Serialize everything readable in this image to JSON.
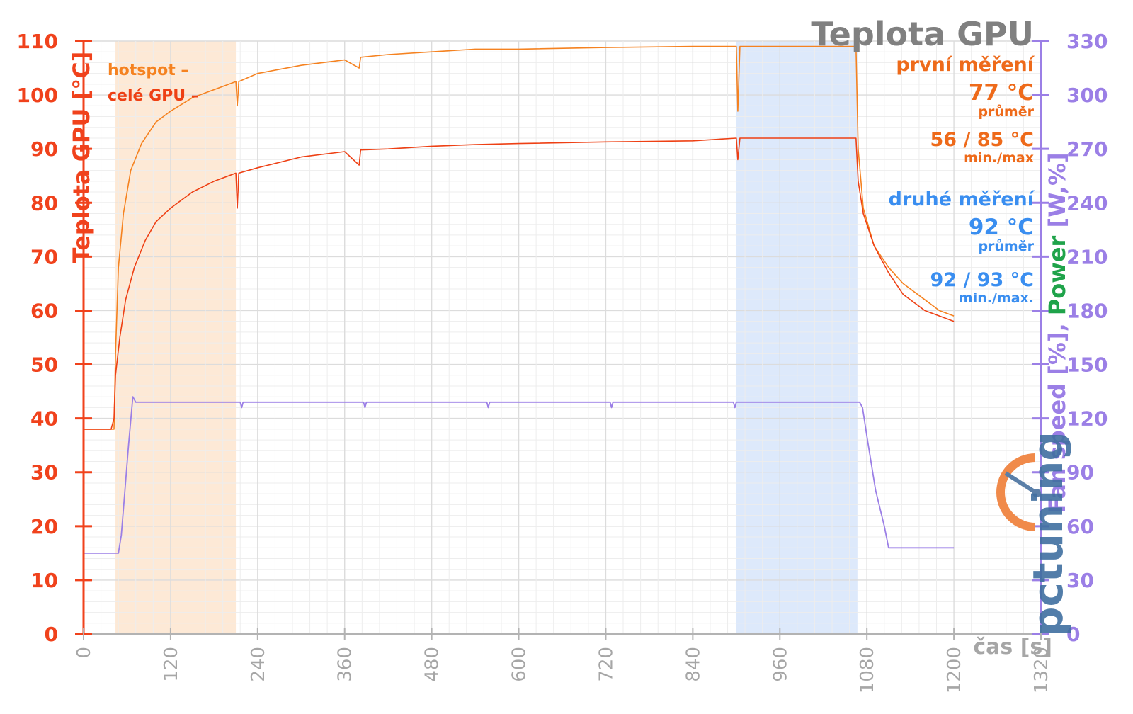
{
  "chart_data": {
    "type": "line",
    "title": "Teplota GPU",
    "xlabel": "čas [s]",
    "ylabel_left": "Teplota GPU [°C]",
    "ylabel_right_parts": [
      {
        "text": "Fan speed [%], ",
        "color": "#9b7fe6"
      },
      {
        "text": "Power",
        "color": "#1fa34a"
      },
      {
        "text": " [W,%]",
        "color": "#9b7fe6"
      }
    ],
    "xlim": [
      0,
      1320
    ],
    "ylim_left": [
      0,
      110
    ],
    "ylim_right": [
      0,
      330
    ],
    "x_ticks": [
      "0",
      "120",
      "240",
      "360",
      "480",
      "600",
      "720",
      "840",
      "960",
      "1080",
      "1200",
      "1320"
    ],
    "y_ticks_left": [
      "0",
      "10",
      "20",
      "30",
      "40",
      "50",
      "60",
      "70",
      "80",
      "90",
      "100",
      "110"
    ],
    "y_ticks_right": [
      "0",
      "30",
      "60",
      "90",
      "120",
      "150",
      "180",
      "210",
      "240",
      "270",
      "300",
      "330"
    ],
    "grid": true,
    "shaded_regions": [
      {
        "x": [
          44,
          210
        ],
        "color": "#fde9d6"
      },
      {
        "x": [
          900,
          1067
        ],
        "color": "#dde9fb"
      }
    ],
    "series": [
      {
        "name": "hotspot",
        "color": "#f58220",
        "axis": "left",
        "points": [
          [
            0,
            38
          ],
          [
            42,
            38
          ],
          [
            44,
            52
          ],
          [
            48,
            68
          ],
          [
            55,
            78
          ],
          [
            65,
            86
          ],
          [
            80,
            91
          ],
          [
            100,
            95
          ],
          [
            120,
            97
          ],
          [
            150,
            99.5
          ],
          [
            180,
            101
          ],
          [
            210,
            102.5
          ],
          [
            212,
            98
          ],
          [
            214,
            102.5
          ],
          [
            240,
            104
          ],
          [
            300,
            105.5
          ],
          [
            360,
            106.5
          ],
          [
            380,
            105
          ],
          [
            382,
            107
          ],
          [
            420,
            107.5
          ],
          [
            480,
            108
          ],
          [
            540,
            108.5
          ],
          [
            600,
            108.5
          ],
          [
            720,
            108.8
          ],
          [
            840,
            109
          ],
          [
            900,
            109
          ],
          [
            902,
            97
          ],
          [
            905,
            109
          ],
          [
            960,
            109
          ],
          [
            1065,
            109
          ],
          [
            1068,
            90
          ],
          [
            1075,
            79
          ],
          [
            1090,
            72
          ],
          [
            1110,
            68
          ],
          [
            1130,
            65
          ],
          [
            1160,
            62
          ],
          [
            1180,
            60
          ],
          [
            1200,
            59
          ]
        ]
      },
      {
        "name": "celé GPU",
        "color": "#ee4014",
        "axis": "left",
        "points": [
          [
            0,
            38
          ],
          [
            38,
            38
          ],
          [
            40,
            39
          ],
          [
            42,
            40
          ],
          [
            44,
            48
          ],
          [
            50,
            55
          ],
          [
            58,
            62
          ],
          [
            70,
            68
          ],
          [
            85,
            73
          ],
          [
            100,
            76.5
          ],
          [
            120,
            79
          ],
          [
            150,
            82
          ],
          [
            180,
            84
          ],
          [
            210,
            85.5
          ],
          [
            212,
            79
          ],
          [
            214,
            85.5
          ],
          [
            240,
            86.5
          ],
          [
            300,
            88.5
          ],
          [
            360,
            89.5
          ],
          [
            380,
            87
          ],
          [
            382,
            89.8
          ],
          [
            420,
            90
          ],
          [
            480,
            90.5
          ],
          [
            540,
            90.8
          ],
          [
            600,
            91
          ],
          [
            720,
            91.3
          ],
          [
            840,
            91.5
          ],
          [
            900,
            92
          ],
          [
            902,
            88
          ],
          [
            905,
            92
          ],
          [
            960,
            92
          ],
          [
            1065,
            92
          ],
          [
            1068,
            84
          ],
          [
            1075,
            78
          ],
          [
            1090,
            72
          ],
          [
            1110,
            67
          ],
          [
            1130,
            63
          ],
          [
            1160,
            60
          ],
          [
            1180,
            59
          ],
          [
            1200,
            58
          ]
        ]
      },
      {
        "name": "Fan speed",
        "color": "#9b7fe6",
        "axis": "right",
        "points": [
          [
            0,
            45
          ],
          [
            48,
            45
          ],
          [
            52,
            55
          ],
          [
            56,
            75
          ],
          [
            62,
            105
          ],
          [
            68,
            132
          ],
          [
            72,
            129
          ],
          [
            216,
            129
          ],
          [
            218,
            126
          ],
          [
            220,
            129
          ],
          [
            386,
            129
          ],
          [
            388,
            126
          ],
          [
            390,
            129
          ],
          [
            556,
            129
          ],
          [
            558,
            126
          ],
          [
            560,
            129
          ],
          [
            726,
            129
          ],
          [
            728,
            126
          ],
          [
            730,
            129
          ],
          [
            896,
            129
          ],
          [
            898,
            126
          ],
          [
            900,
            129
          ],
          [
            1070,
            129
          ],
          [
            1074,
            126
          ],
          [
            1080,
            110
          ],
          [
            1092,
            80
          ],
          [
            1104,
            60
          ],
          [
            1110,
            48
          ],
          [
            1200,
            48
          ]
        ]
      }
    ],
    "annotations": {
      "legend_hotspot": "hotspot –",
      "legend_gpu": "celé GPU –",
      "first_label": "první měření",
      "first_avg": "77 °C",
      "first_avg_label": "průměr",
      "first_minmax": "56 / 85 °C",
      "first_minmax_label": "min./max",
      "second_label": "druhé měření",
      "second_avg": "92 °C",
      "second_avg_label": "průměr",
      "second_minmax": "92 / 93 °C",
      "second_minmax_label": "min./max."
    },
    "colors": {
      "first": "#ee6a1a",
      "second": "#3a8ef0",
      "left_axis": "#f0421c",
      "right_axis": "#9b7fe6"
    }
  },
  "logo": {
    "text": "pctuning"
  }
}
